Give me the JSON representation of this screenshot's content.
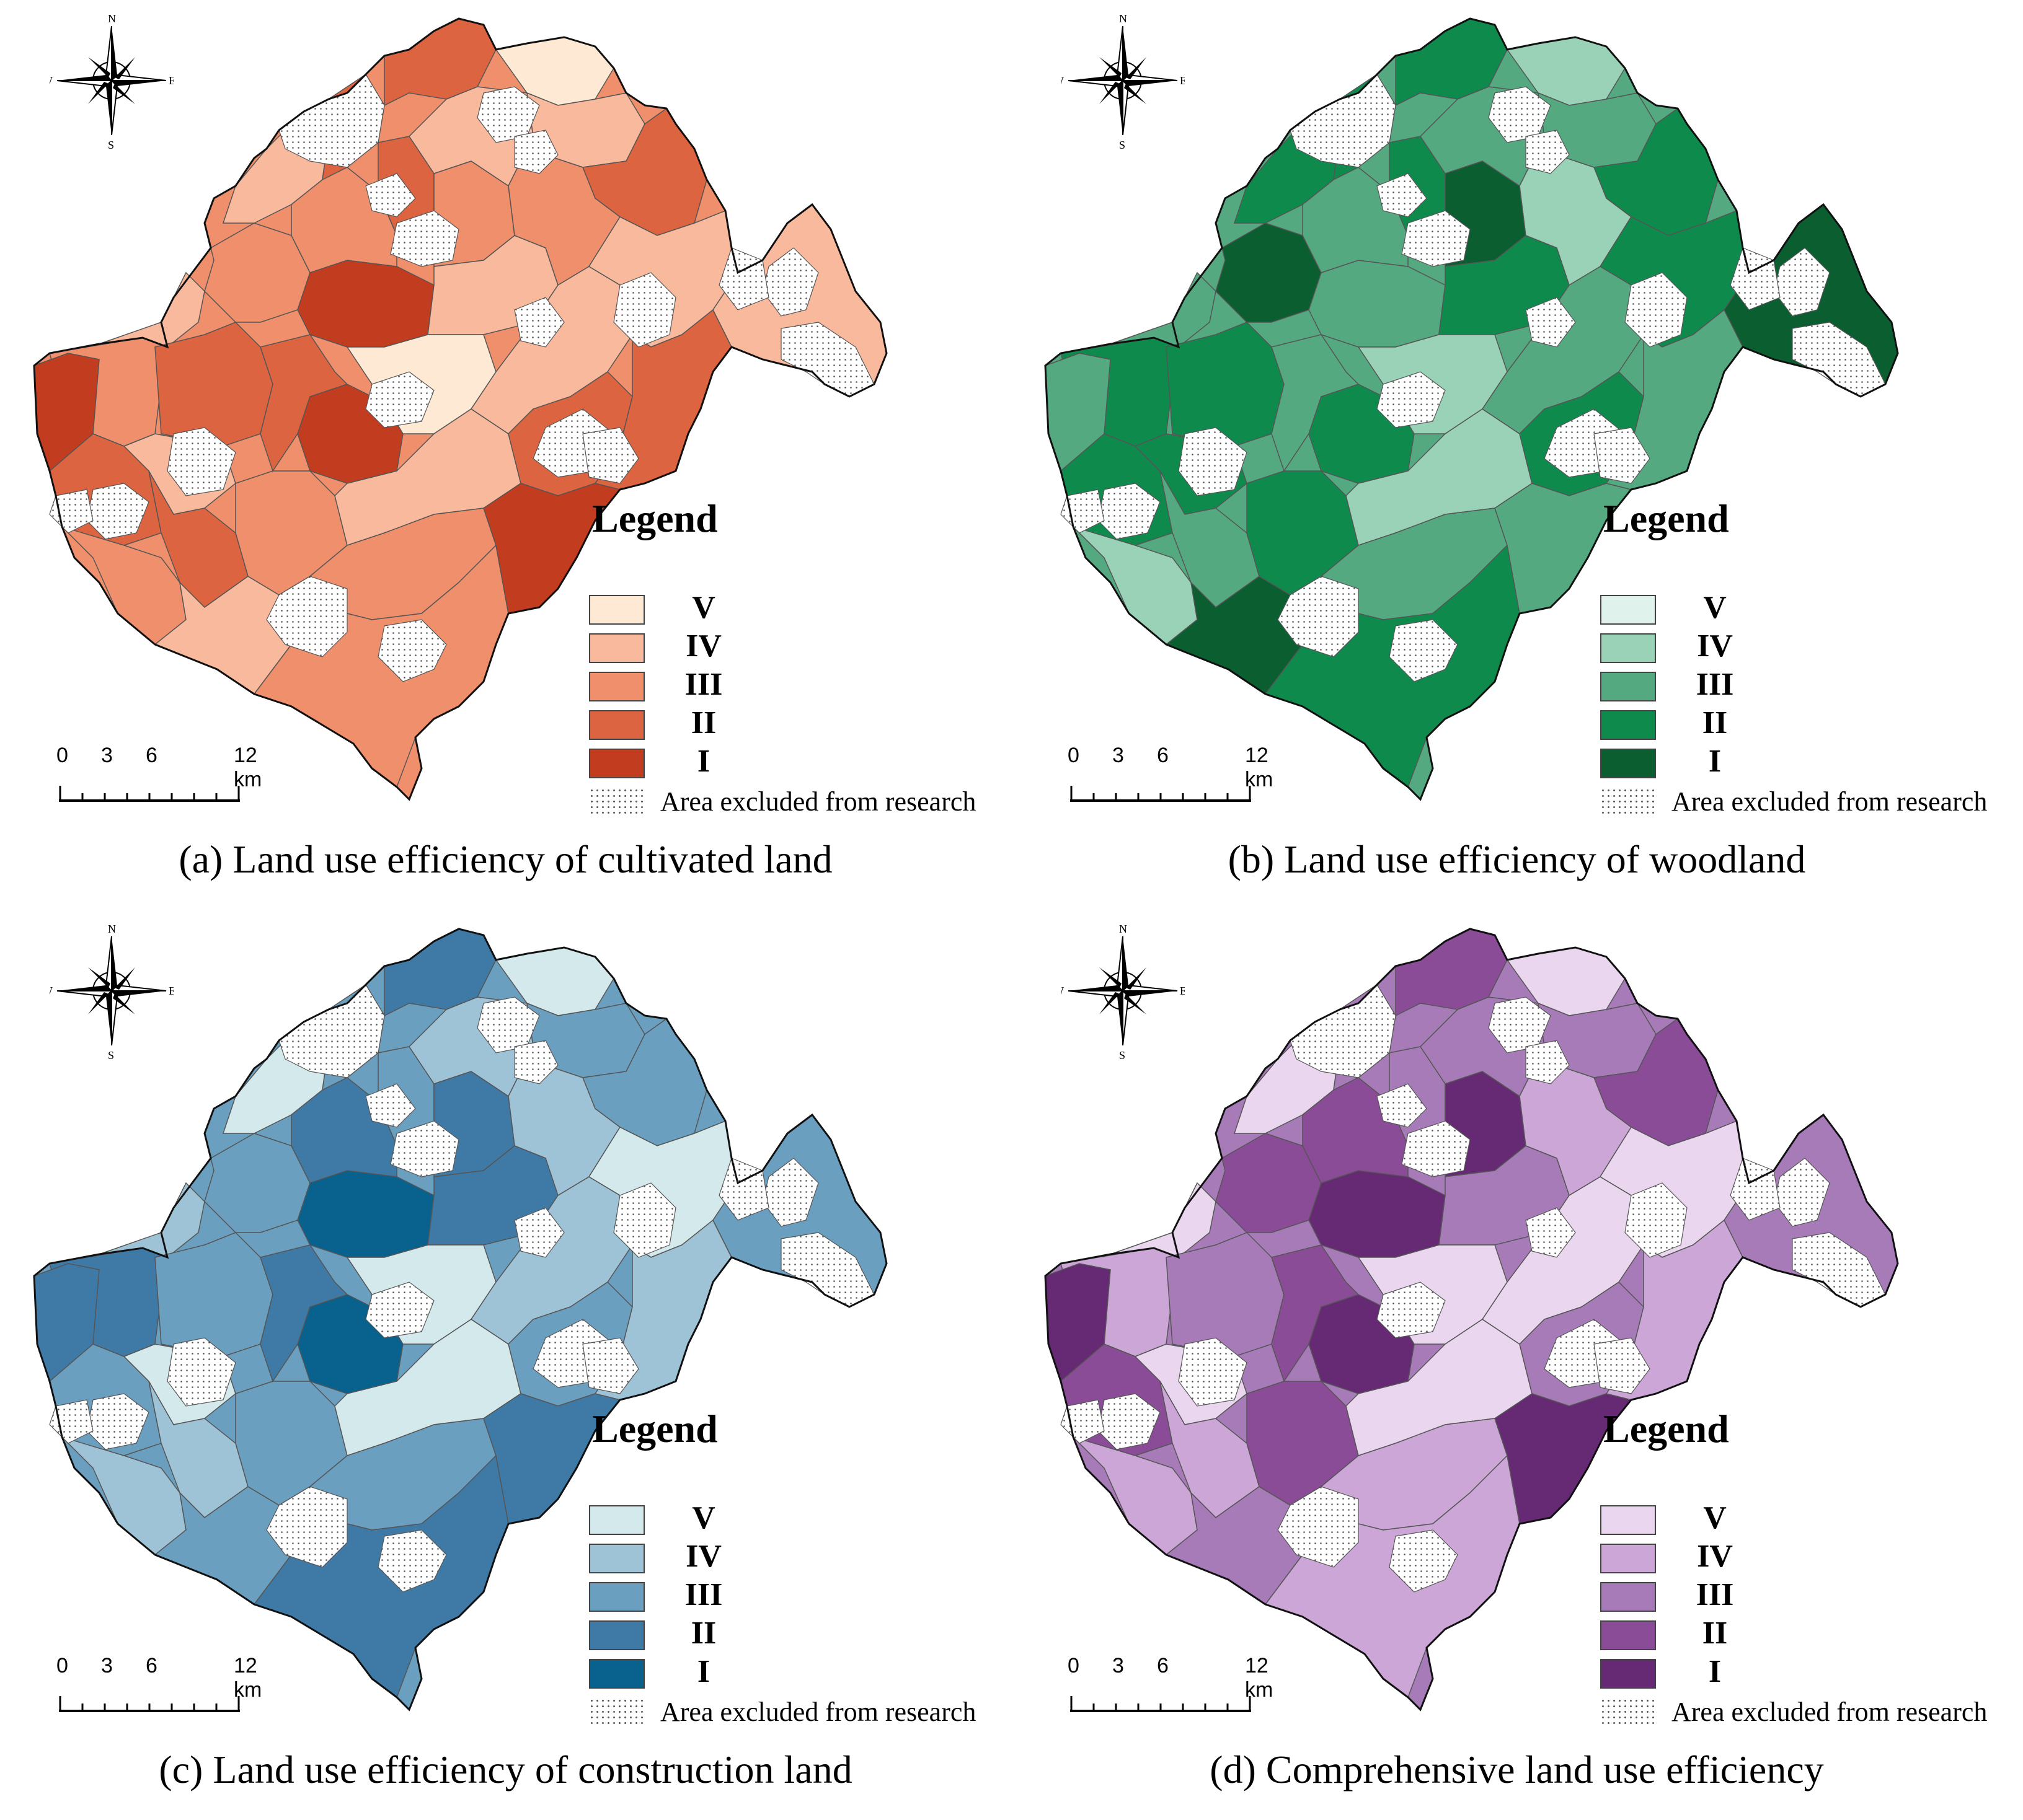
{
  "panels": [
    {
      "id": "a",
      "caption": "(a) Land use efficiency of cultivated land",
      "palette": {
        "V": "#fde9d4",
        "IV": "#f8b99c",
        "III": "#ef8f6c",
        "II": "#dc6440",
        "I": "#c23c1f"
      }
    },
    {
      "id": "b",
      "caption": "(b) Land use efficiency of woodland",
      "palette": {
        "V": "#dff3ec",
        "IV": "#99d2b6",
        "III": "#55a980",
        "II": "#0e8a4c",
        "I": "#0a5e30"
      }
    },
    {
      "id": "c",
      "caption": "(c) Land use efficiency of construction land",
      "palette": {
        "V": "#d4e9ec",
        "IV": "#9fc3d6",
        "III": "#6a9fc0",
        "II": "#3f7aa7",
        "I": "#09618e"
      }
    },
    {
      "id": "d",
      "caption": "(d) Comprehensive land use efficiency",
      "palette": {
        "V": "#ead7ef",
        "IV": "#cba6d6",
        "III": "#a77bb8",
        "II": "#8a4c97",
        "I": "#662a75"
      }
    }
  ],
  "legend": {
    "title": "Legend",
    "classes": [
      "V",
      "IV",
      "III",
      "II",
      "I"
    ],
    "excluded_label": "Area excluded from research"
  },
  "compass": {
    "n": "N",
    "s": "S",
    "e": "E",
    "w": "W"
  },
  "scalebar": {
    "ticks": [
      "0",
      "3",
      "6"
    ],
    "end_label": "12 km"
  },
  "regions": [
    {
      "cls": [
        "III",
        "II",
        "II",
        "IV"
      ]
    },
    {
      "cls": [
        "IV",
        "III",
        "IV",
        "V"
      ]
    },
    {
      "cls": [
        "II",
        "II",
        "III",
        "III"
      ]
    },
    {
      "cls": [
        "I",
        "III",
        "II",
        "I"
      ]
    },
    {
      "cls": [
        "II",
        "II",
        "III",
        "II"
      ]
    },
    {
      "cls": [
        "III",
        "IV",
        "IV",
        "IV"
      ]
    },
    {
      "cls": [
        "IV",
        "II",
        "V",
        "V"
      ]
    },
    {
      "cls": [
        "II",
        "III",
        "IV",
        "IV"
      ]
    },
    {
      "cls": [
        "IV",
        "I",
        "III",
        "III"
      ]
    },
    {
      "cls": [
        "III",
        "II",
        "III",
        "II"
      ]
    },
    {
      "cls": [
        "I",
        "II",
        "I",
        "I"
      ]
    },
    {
      "cls": [
        "II",
        "III",
        "II",
        "II"
      ]
    },
    {
      "cls": [
        "III",
        "I",
        "III",
        "II"
      ]
    },
    {
      "cls": [
        "IV",
        "II",
        "V",
        "V"
      ]
    },
    {
      "cls": [
        "II",
        "II",
        "III",
        "III"
      ]
    },
    {
      "cls": [
        "I",
        "III",
        "I",
        "I"
      ]
    },
    {
      "cls": [
        "III",
        "III",
        "II",
        "II"
      ]
    },
    {
      "cls": [
        "II",
        "II",
        "III",
        "III"
      ]
    },
    {
      "cls": [
        "III",
        "I",
        "II",
        "I"
      ]
    },
    {
      "cls": [
        "II",
        "II",
        "II",
        "II"
      ]
    },
    {
      "cls": [
        "IV",
        "III",
        "IV",
        "III"
      ]
    },
    {
      "cls": [
        "V",
        "IV",
        "V",
        "V"
      ]
    },
    {
      "cls": [
        "IV",
        "III",
        "III",
        "III"
      ]
    },
    {
      "cls": [
        "IV",
        "II",
        "II",
        "III"
      ]
    },
    {
      "cls": [
        "V",
        "IV",
        "V",
        "V"
      ]
    },
    {
      "cls": [
        "IV",
        "IV",
        "V",
        "V"
      ]
    },
    {
      "cls": [
        "III",
        "III",
        "III",
        "IV"
      ]
    }
  ]
}
